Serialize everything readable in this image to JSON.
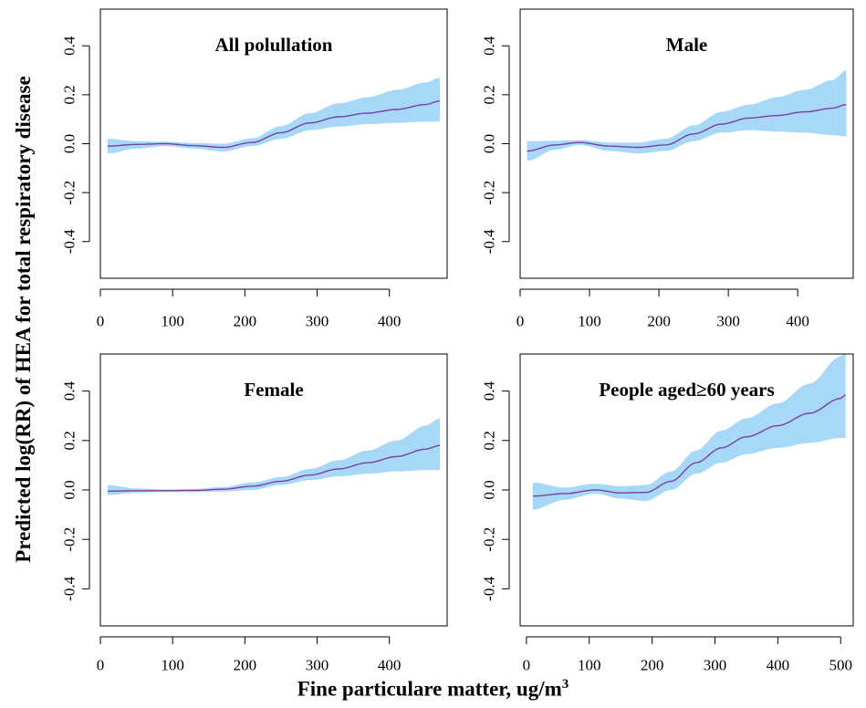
{
  "figure": {
    "ylabel": "Predicted log(RR) of HEA for total respiratory disease",
    "xlabel": "Fine particulare matter, ug/m",
    "xlabel_superscript": "3"
  },
  "chart_data": [
    {
      "type": "line",
      "title": "All polullation",
      "xlim": [
        0,
        480
      ],
      "ylim": [
        -0.55,
        0.55
      ],
      "xticks": [
        0,
        100,
        200,
        300,
        400
      ],
      "yticks": [
        -0.4,
        -0.2,
        0.0,
        0.2,
        0.4
      ],
      "xtick_labels": [
        "0",
        "100",
        "200",
        "300",
        "400"
      ],
      "ytick_labels": [
        "-0.4",
        "-0.2",
        "0.0",
        "0.2",
        "0.4"
      ],
      "x": [
        10,
        50,
        90,
        130,
        170,
        210,
        250,
        290,
        330,
        370,
        410,
        450,
        470
      ],
      "y": [
        -0.01,
        -0.003,
        0.0,
        -0.008,
        -0.015,
        0.005,
        0.045,
        0.085,
        0.11,
        0.125,
        0.14,
        0.16,
        0.175
      ],
      "lower": [
        -0.04,
        -0.02,
        -0.01,
        -0.02,
        -0.032,
        -0.01,
        0.02,
        0.055,
        0.07,
        0.08,
        0.085,
        0.09,
        0.09
      ],
      "upper": [
        0.02,
        0.01,
        0.008,
        0.003,
        0.0,
        0.022,
        0.072,
        0.125,
        0.165,
        0.19,
        0.22,
        0.25,
        0.27
      ],
      "colors": {
        "line": "#7a3fa0",
        "band": "#a8d8f8"
      }
    },
    {
      "type": "line",
      "title": "Male",
      "xlim": [
        0,
        480
      ],
      "ylim": [
        -0.55,
        0.55
      ],
      "xticks": [
        0,
        100,
        200,
        300,
        400
      ],
      "yticks": [
        -0.4,
        -0.2,
        0.0,
        0.2,
        0.4
      ],
      "xtick_labels": [
        "0",
        "100",
        "200",
        "300",
        "400"
      ],
      "ytick_labels": [
        "-0.4",
        "-0.2",
        "0.0",
        "0.2",
        "0.4"
      ],
      "x": [
        10,
        50,
        85,
        130,
        170,
        210,
        250,
        290,
        330,
        370,
        410,
        450,
        470
      ],
      "y": [
        -0.03,
        -0.005,
        0.005,
        -0.01,
        -0.015,
        -0.005,
        0.04,
        0.08,
        0.105,
        0.115,
        0.13,
        0.145,
        0.16
      ],
      "lower": [
        -0.07,
        -0.025,
        -0.005,
        -0.03,
        -0.04,
        -0.03,
        0.01,
        0.045,
        0.055,
        0.05,
        0.045,
        0.035,
        0.03
      ],
      "upper": [
        0.01,
        0.012,
        0.015,
        0.005,
        0.005,
        0.02,
        0.075,
        0.13,
        0.16,
        0.19,
        0.22,
        0.26,
        0.3
      ],
      "colors": {
        "line": "#7a3fa0",
        "band": "#a8d8f8"
      }
    },
    {
      "type": "line",
      "title": "Female",
      "xlim": [
        0,
        480
      ],
      "ylim": [
        -0.55,
        0.55
      ],
      "xticks": [
        0,
        100,
        200,
        300,
        400
      ],
      "yticks": [
        -0.4,
        -0.2,
        0.0,
        0.2,
        0.4
      ],
      "xtick_labels": [
        "0",
        "100",
        "200",
        "300",
        "400"
      ],
      "ytick_labels": [
        "-0.4",
        "-0.2",
        "0.0",
        "0.2",
        "0.4"
      ],
      "x": [
        10,
        50,
        90,
        130,
        170,
        210,
        250,
        290,
        330,
        370,
        410,
        450,
        470
      ],
      "y": [
        -0.005,
        -0.003,
        -0.003,
        -0.002,
        0.003,
        0.015,
        0.035,
        0.06,
        0.085,
        0.11,
        0.135,
        0.165,
        0.18
      ],
      "lower": [
        -0.02,
        -0.012,
        -0.008,
        -0.008,
        -0.006,
        0.0,
        0.02,
        0.04,
        0.055,
        0.065,
        0.075,
        0.08,
        0.08
      ],
      "upper": [
        0.02,
        0.006,
        0.002,
        0.004,
        0.012,
        0.03,
        0.052,
        0.085,
        0.12,
        0.16,
        0.2,
        0.26,
        0.29
      ],
      "colors": {
        "line": "#7a3fa0",
        "band": "#a8d8f8"
      }
    },
    {
      "type": "line",
      "title": "People aged≥60 years",
      "xlim": [
        -10,
        520
      ],
      "ylim": [
        -0.55,
        0.55
      ],
      "xticks": [
        0,
        100,
        200,
        300,
        400,
        500
      ],
      "yticks": [
        -0.4,
        -0.2,
        0.0,
        0.2,
        0.4
      ],
      "xtick_labels": [
        "0",
        "100",
        "200",
        "300",
        "400",
        "500"
      ],
      "ytick_labels": [
        "-0.4",
        "-0.2",
        "0.0",
        "0.2",
        "0.4"
      ],
      "x": [
        10,
        60,
        110,
        150,
        190,
        230,
        270,
        310,
        350,
        400,
        450,
        500,
        508
      ],
      "y": [
        -0.025,
        -0.015,
        0.0,
        -0.012,
        -0.01,
        0.035,
        0.11,
        0.17,
        0.215,
        0.26,
        0.31,
        0.37,
        0.385
      ],
      "lower": [
        -0.08,
        -0.04,
        -0.015,
        -0.035,
        -0.045,
        0.0,
        0.065,
        0.11,
        0.145,
        0.17,
        0.19,
        0.21,
        0.21
      ],
      "upper": [
        0.03,
        0.01,
        0.025,
        0.015,
        0.02,
        0.075,
        0.16,
        0.24,
        0.29,
        0.35,
        0.43,
        0.54,
        0.56
      ],
      "colors": {
        "line": "#7a3fa0",
        "band": "#a8d8f8"
      }
    }
  ]
}
